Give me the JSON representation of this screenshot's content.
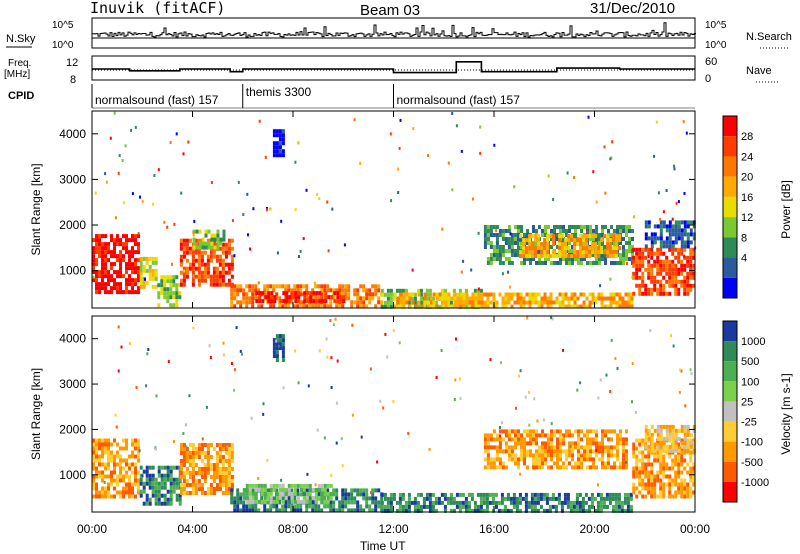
{
  "header": {
    "station": "Inuvik (fitACF)",
    "beam": "Beam 03",
    "date": "31/Dec/2010"
  },
  "small_panels": {
    "nsky_label": "N.Sky",
    "nsky_ticks_left": [
      "10^5",
      "10^0"
    ],
    "nsky_ticks_right": [
      "10^5",
      "10^0"
    ],
    "nsearch_label": "N.Search",
    "freq_label": "Freq.",
    "freq_units": "[MHz]",
    "freq_ticks": [
      "12",
      "8"
    ],
    "nave_label": "Nave",
    "nave_ticks": [
      "60",
      "0"
    ],
    "cpid_label": "CPID"
  },
  "cpid_segments": [
    {
      "label": "normalsound (fast) 157",
      "start_hr": 0,
      "end_hr": 6
    },
    {
      "label": "themis 3300",
      "start_hr": 6,
      "end_hr": 12
    },
    {
      "label": "normalsound (fast) 157",
      "start_hr": 12,
      "end_hr": 24
    }
  ],
  "x_axis": {
    "label": "Time UT",
    "ticks": [
      "00:00",
      "04:00",
      "08:00",
      "12:00",
      "16:00",
      "20:00",
      "00:00"
    ],
    "range_hr": [
      0,
      24
    ]
  },
  "chart_data": [
    {
      "type": "heatmap",
      "panel": "power",
      "ylabel": "Slant Range [km]",
      "yticks": [
        1000,
        2000,
        3000,
        4000
      ],
      "ylim": [
        180,
        4500
      ],
      "xlim_hr": [
        0,
        24
      ],
      "colorbar": {
        "label": "Power [dB]",
        "ticks": [
          "28",
          "24",
          "20",
          "16",
          "12",
          "8",
          "4"
        ],
        "colors": [
          "#ff0000",
          "#ff3c00",
          "#ff7800",
          "#ffaa00",
          "#e8dc00",
          "#7ac832",
          "#2e8b57",
          "#2a5aa0",
          "#0000ff"
        ]
      },
      "regions": [
        {
          "t0": 0.0,
          "t1": 1.9,
          "r0": 500,
          "r1": 1800,
          "c": 0
        },
        {
          "t0": 1.9,
          "t1": 2.6,
          "r0": 600,
          "r1": 1300,
          "c": 4
        },
        {
          "t0": 2.6,
          "t1": 3.5,
          "r0": 200,
          "r1": 900,
          "c": 5
        },
        {
          "t0": 3.5,
          "t1": 5.6,
          "r0": 700,
          "r1": 1700,
          "c": 1
        },
        {
          "t0": 4.0,
          "t1": 5.2,
          "r0": 1500,
          "r1": 1900,
          "c": 5
        },
        {
          "t0": 5.5,
          "t1": 11.5,
          "r0": 250,
          "r1": 700,
          "c": 2
        },
        {
          "t0": 6.5,
          "t1": 10.0,
          "r0": 300,
          "r1": 550,
          "c": 0
        },
        {
          "t0": 11.5,
          "t1": 15.5,
          "r0": 220,
          "r1": 600,
          "c": 5
        },
        {
          "t0": 12.0,
          "t1": 21.5,
          "r0": 220,
          "r1": 520,
          "c": 3
        },
        {
          "t0": 15.6,
          "t1": 21.5,
          "r0": 1200,
          "r1": 2000,
          "c": 6
        },
        {
          "t0": 17.0,
          "t1": 21.0,
          "r0": 1300,
          "r1": 1800,
          "c": 3
        },
        {
          "t0": 21.5,
          "t1": 24.0,
          "r0": 500,
          "r1": 1500,
          "c": 1
        },
        {
          "t0": 22.0,
          "t1": 24.0,
          "r0": 1500,
          "r1": 2100,
          "c": 7
        },
        {
          "t0": 7.2,
          "t1": 7.6,
          "r0": 3500,
          "r1": 4100,
          "c": 8
        }
      ]
    },
    {
      "type": "heatmap",
      "panel": "velocity",
      "ylabel": "Slant Range [km]",
      "yticks": [
        1000,
        2000,
        3000,
        4000
      ],
      "ylim": [
        180,
        4500
      ],
      "xlim_hr": [
        0,
        24
      ],
      "colorbar": {
        "label": "Velocity [m s-1]",
        "ticks": [
          "1000",
          "500",
          "100",
          "25",
          "-25",
          "-100",
          "-500",
          "-1000"
        ],
        "colors": [
          "#1a3aa0",
          "#2e8b57",
          "#4caf50",
          "#7cd04c",
          "#c0c0c0",
          "#ffcc33",
          "#ff9900",
          "#ff5a00",
          "#ff0000"
        ]
      },
      "regions": [
        {
          "t0": 0.0,
          "t1": 1.9,
          "r0": 500,
          "r1": 1800,
          "c": 6
        },
        {
          "t0": 1.9,
          "t1": 3.5,
          "r0": 400,
          "r1": 1200,
          "c": 1
        },
        {
          "t0": 3.5,
          "t1": 5.6,
          "r0": 600,
          "r1": 1700,
          "c": 6
        },
        {
          "t0": 5.5,
          "t1": 11.5,
          "r0": 250,
          "r1": 700,
          "c": 1
        },
        {
          "t0": 6.0,
          "t1": 9.5,
          "r0": 400,
          "r1": 800,
          "c": 3
        },
        {
          "t0": 11.5,
          "t1": 21.5,
          "r0": 220,
          "r1": 600,
          "c": 1
        },
        {
          "t0": 15.6,
          "t1": 21.3,
          "r0": 1200,
          "r1": 2000,
          "c": 6
        },
        {
          "t0": 21.5,
          "t1": 24.0,
          "r0": 500,
          "r1": 1800,
          "c": 6
        },
        {
          "t0": 22.0,
          "t1": 24.0,
          "r0": 1500,
          "r1": 2100,
          "c": 5
        },
        {
          "t0": 7.2,
          "t1": 7.6,
          "r0": 3500,
          "r1": 4100,
          "c": 0
        }
      ]
    }
  ],
  "frequency_trace": [
    {
      "t": 0,
      "f": 10.0
    },
    {
      "t": 1.5,
      "f": 10.0
    },
    {
      "t": 1.5,
      "f": 9.6
    },
    {
      "t": 3.5,
      "f": 9.6
    },
    {
      "t": 3.5,
      "f": 10.0
    },
    {
      "t": 5.5,
      "f": 10.0
    },
    {
      "t": 5.5,
      "f": 9.4
    },
    {
      "t": 6.0,
      "f": 9.4
    },
    {
      "t": 6.0,
      "f": 10.0
    },
    {
      "t": 12.0,
      "f": 10.0
    },
    {
      "t": 12.0,
      "f": 9.2
    },
    {
      "t": 14.5,
      "f": 9.2
    },
    {
      "t": 14.5,
      "f": 11.6
    },
    {
      "t": 15.5,
      "f": 11.6
    },
    {
      "t": 15.5,
      "f": 9.4
    },
    {
      "t": 18.5,
      "f": 9.4
    },
    {
      "t": 18.5,
      "f": 10.2
    },
    {
      "t": 21.0,
      "f": 10.2
    },
    {
      "t": 21.0,
      "f": 10.0
    },
    {
      "t": 24,
      "f": 10.0
    }
  ]
}
